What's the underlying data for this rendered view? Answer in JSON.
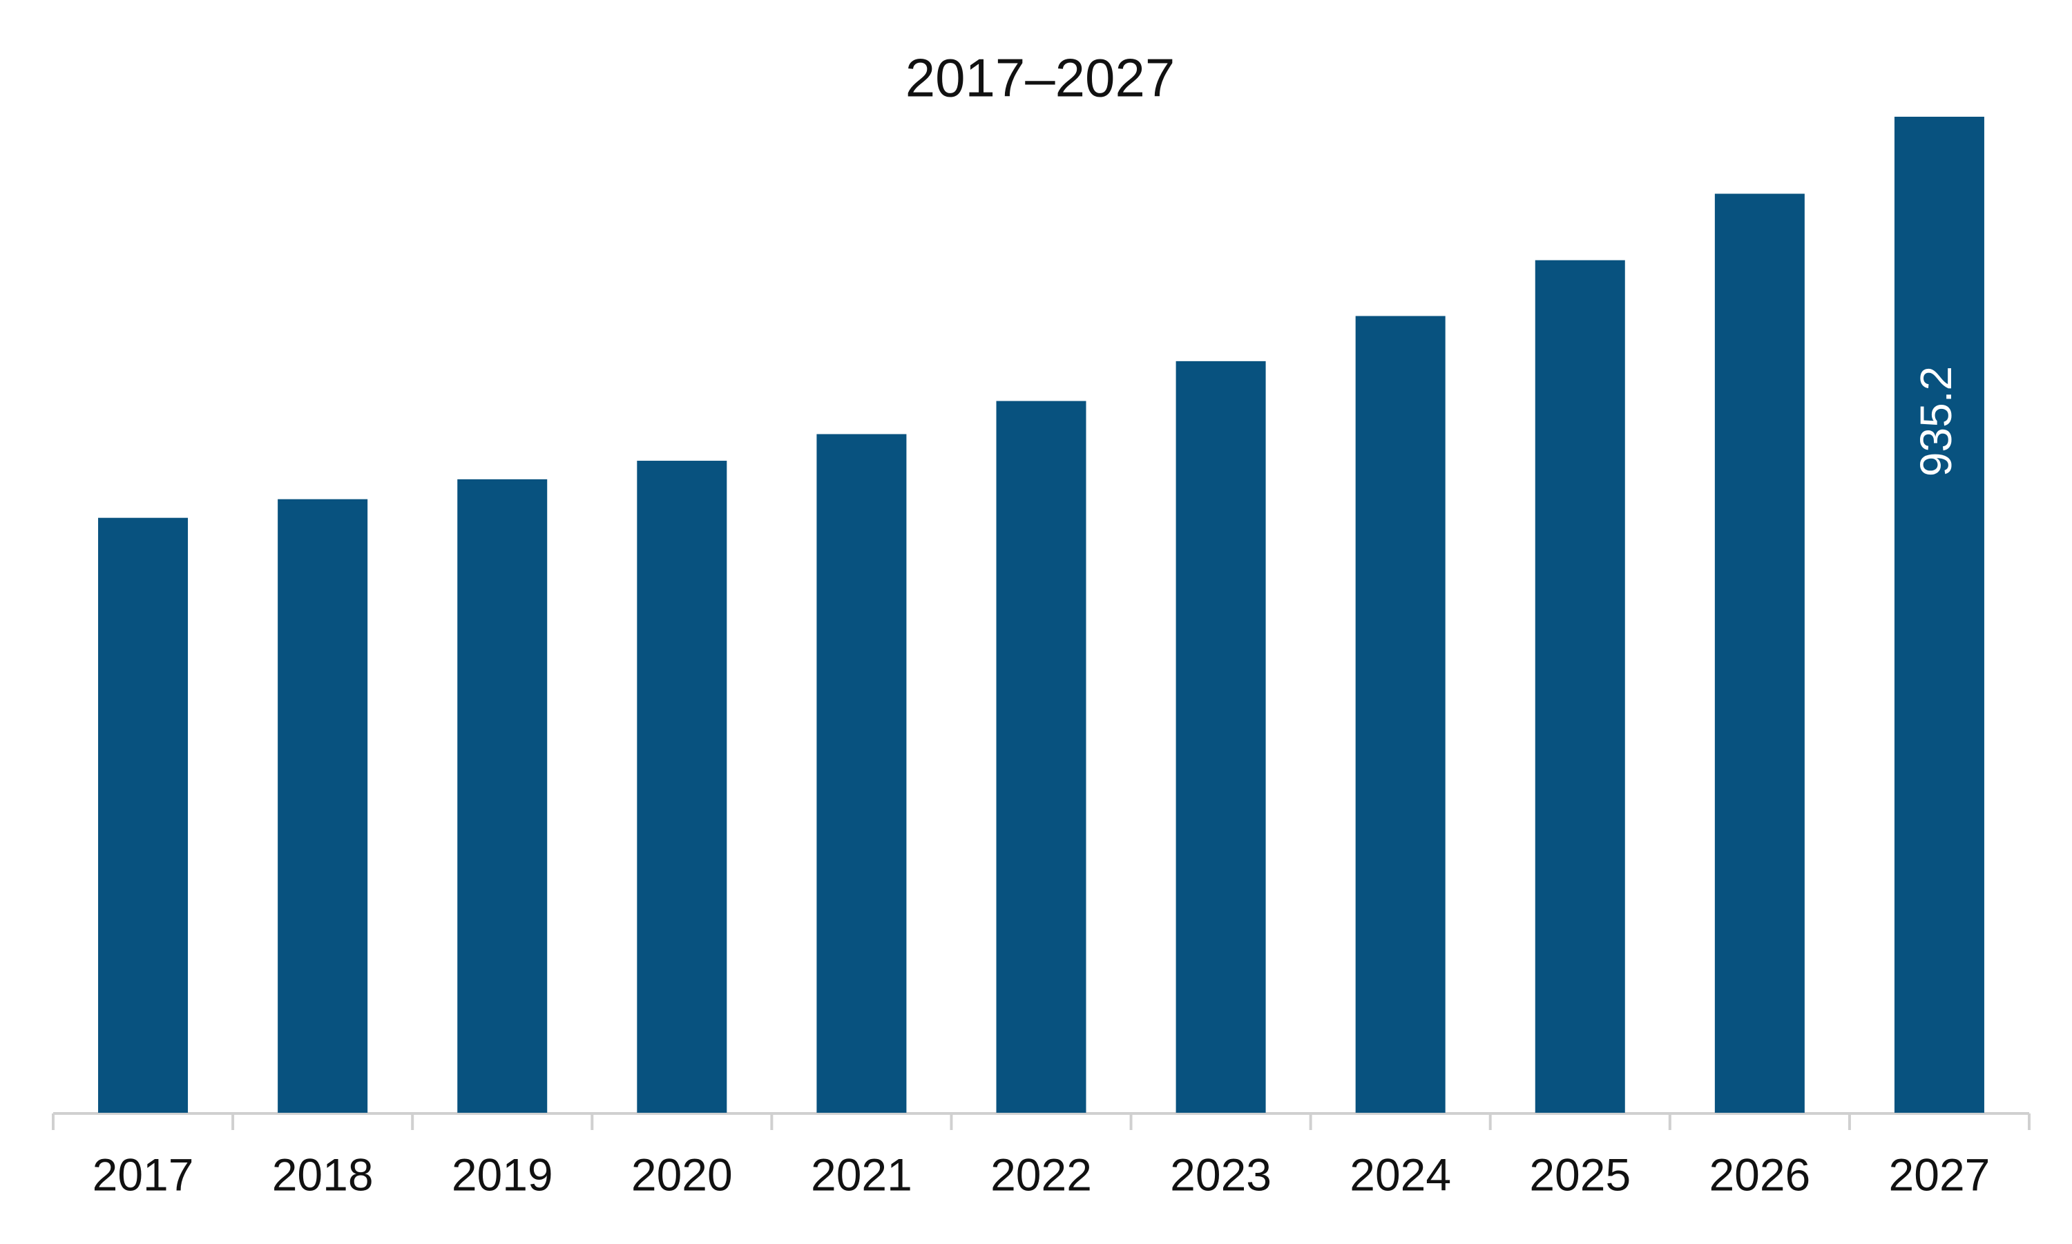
{
  "chart_data": {
    "type": "bar",
    "title": "2017–2027",
    "categories": [
      "2017",
      "2018",
      "2019",
      "2020",
      "2021",
      "2022",
      "2023",
      "2024",
      "2025",
      "2026",
      "2027"
    ],
    "values": [
      558.6,
      576.1,
      594.8,
      612.2,
      637.2,
      668.3,
      705.7,
      748.1,
      800.5,
      862.9,
      935.2
    ],
    "value_labels": [
      null,
      null,
      null,
      null,
      null,
      null,
      null,
      null,
      null,
      null,
      "935.2"
    ],
    "color": "#08527f"
  }
}
